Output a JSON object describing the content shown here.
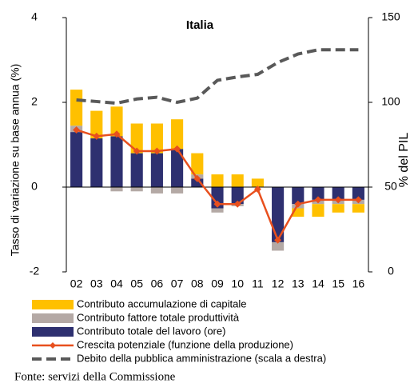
{
  "chart_data": {
    "type": "bar",
    "stacked": true,
    "title": "Italia",
    "y_label": "Tasso di variazione su base annua  (%)",
    "y2_label": "% del PIL",
    "categories": [
      "02",
      "03",
      "04",
      "05",
      "06",
      "07",
      "08",
      "09",
      "10",
      "11",
      "12",
      "13",
      "14",
      "15",
      "16"
    ],
    "series": [
      {
        "name": "Contributo totale del lavoro (ore)",
        "type": "bar",
        "color": "#2e3070",
        "values": [
          1.3,
          1.15,
          1.2,
          0.8,
          0.8,
          0.9,
          0.2,
          -0.5,
          -0.4,
          0.0,
          -1.3,
          -0.4,
          -0.3,
          -0.3,
          -0.3
        ]
      },
      {
        "name": "Contributo fattore totale produttività",
        "type": "bar",
        "color": "#b4a9a5",
        "values": [
          0.15,
          0.0,
          -0.1,
          -0.1,
          -0.15,
          -0.15,
          0.1,
          -0.1,
          -0.05,
          0.0,
          -0.2,
          -0.1,
          -0.1,
          -0.1,
          -0.1
        ]
      },
      {
        "name": "Contributo accumulazione di capitale",
        "type": "bar",
        "color": "#ffc000",
        "values": [
          0.85,
          0.65,
          0.7,
          0.7,
          0.7,
          0.7,
          0.5,
          0.3,
          0.3,
          0.2,
          0.0,
          -0.2,
          -0.3,
          -0.2,
          -0.2
        ]
      },
      {
        "name": "Crescita potenziale (funzione della produzione)",
        "type": "line",
        "marker": "diamond",
        "color": "#e8501e",
        "values": [
          1.35,
          1.2,
          1.25,
          0.85,
          0.85,
          0.9,
          0.2,
          -0.4,
          -0.4,
          -0.05,
          -1.25,
          -0.4,
          -0.3,
          -0.3,
          -0.3
        ]
      },
      {
        "name": "Debito della pubblica amministrazione (scala a destra)",
        "type": "line",
        "dashed": true,
        "axis": "y2",
        "color": "#595959",
        "values": [
          101.4,
          100.5,
          99.5,
          102,
          103,
          100,
          102.5,
          113,
          115,
          116.5,
          123.5,
          128.5,
          131,
          131,
          131
        ]
      }
    ],
    "legend_order": [
      2,
      1,
      0,
      3,
      4
    ],
    "ylim": [
      -2,
      4
    ],
    "yticks": [
      -2,
      0,
      2,
      4
    ],
    "y2lim": [
      0,
      150
    ],
    "y2ticks": [
      0,
      50,
      100,
      150
    ],
    "grid": false,
    "source": "Fonte: servizi della Commissione"
  }
}
